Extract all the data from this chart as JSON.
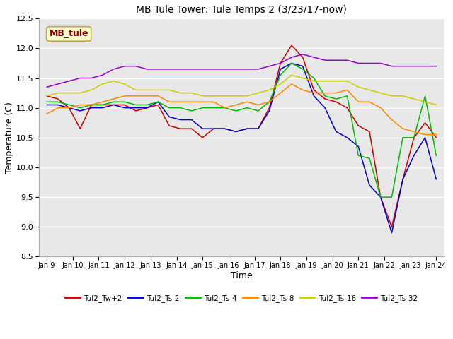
{
  "title": "MB Tule Tower: Tule Temps 2 (3/23/17-now)",
  "xlabel": "Time",
  "ylabel": "Temperature (C)",
  "ylim": [
    8.5,
    12.5
  ],
  "yticks": [
    8.5,
    9.0,
    9.5,
    10.0,
    10.5,
    11.0,
    11.5,
    12.0,
    12.5
  ],
  "bg_color": "#e8e8e8",
  "fig_color": "#ffffff",
  "annotation_box": {
    "text": "MB_tule",
    "facecolor": "#ffffcc",
    "edgecolor": "#bbaa44",
    "textcolor": "#880000"
  },
  "legend_labels": [
    "Tul2_Tw+2",
    "Tul2_Ts-2",
    "Tul2_Ts-4",
    "Tul2_Ts-8",
    "Tul2_Ts-16",
    "Tul2_Ts-32"
  ],
  "line_colors": [
    "#cc0000",
    "#0000cc",
    "#00bb00",
    "#ff8800",
    "#cccc00",
    "#9900cc"
  ],
  "x_tick_labels": [
    "Jan 9",
    "Jan 10",
    "Jan 11",
    "Jan 12",
    "Jan 13",
    "Jan 14",
    "Jan 15",
    "Jan 16",
    "Jan 17",
    "Jan 18",
    "Jan 19",
    "Jan 20",
    "Jan 21",
    "Jan 22",
    "Jan 23",
    "Jan 24"
  ],
  "series": {
    "Tul2_Tw+2": [
      11.2,
      11.15,
      11.0,
      10.65,
      11.05,
      11.05,
      11.05,
      11.05,
      10.95,
      11.0,
      11.05,
      10.7,
      10.65,
      10.65,
      10.5,
      10.65,
      10.65,
      10.6,
      10.65,
      10.65,
      11.0,
      11.75,
      12.05,
      11.85,
      11.3,
      11.15,
      11.1,
      11.0,
      10.7,
      10.6,
      9.5,
      9.0,
      9.8,
      10.5,
      10.75,
      10.5
    ],
    "Tul2_Ts-2": [
      11.05,
      11.05,
      11.0,
      10.95,
      11.0,
      11.0,
      11.05,
      11.0,
      11.0,
      11.0,
      11.1,
      10.85,
      10.8,
      10.8,
      10.65,
      10.65,
      10.65,
      10.6,
      10.65,
      10.65,
      10.95,
      11.65,
      11.75,
      11.7,
      11.2,
      11.0,
      10.6,
      10.5,
      10.35,
      9.7,
      9.5,
      8.9,
      9.8,
      10.2,
      10.5,
      9.8
    ],
    "Tul2_Ts-4": [
      11.1,
      11.1,
      11.05,
      11.0,
      11.05,
      11.05,
      11.1,
      11.1,
      11.05,
      11.05,
      11.1,
      11.0,
      11.0,
      10.95,
      11.0,
      11.0,
      11.0,
      10.95,
      11.0,
      10.95,
      11.1,
      11.55,
      11.75,
      11.65,
      11.5,
      11.2,
      11.15,
      11.2,
      10.2,
      10.15,
      9.5,
      9.5,
      10.5,
      10.5,
      11.2,
      10.2
    ],
    "Tul2_Ts-8": [
      10.9,
      11.0,
      11.0,
      11.05,
      11.05,
      11.1,
      11.15,
      11.2,
      11.2,
      11.2,
      11.2,
      11.1,
      11.1,
      11.1,
      11.1,
      11.1,
      11.0,
      11.05,
      11.1,
      11.05,
      11.1,
      11.25,
      11.4,
      11.3,
      11.25,
      11.25,
      11.25,
      11.3,
      11.1,
      11.1,
      11.0,
      10.8,
      10.65,
      10.6,
      10.55,
      10.55
    ],
    "Tul2_Ts-16": [
      11.2,
      11.25,
      11.25,
      11.25,
      11.3,
      11.4,
      11.45,
      11.4,
      11.3,
      11.3,
      11.3,
      11.3,
      11.25,
      11.25,
      11.2,
      11.2,
      11.2,
      11.2,
      11.2,
      11.25,
      11.3,
      11.4,
      11.55,
      11.5,
      11.45,
      11.45,
      11.45,
      11.45,
      11.35,
      11.3,
      11.25,
      11.2,
      11.2,
      11.15,
      11.1,
      11.05
    ],
    "Tul2_Ts-32": [
      11.35,
      11.4,
      11.45,
      11.5,
      11.5,
      11.55,
      11.65,
      11.7,
      11.7,
      11.65,
      11.65,
      11.65,
      11.65,
      11.65,
      11.65,
      11.65,
      11.65,
      11.65,
      11.65,
      11.65,
      11.7,
      11.75,
      11.85,
      11.9,
      11.85,
      11.8,
      11.8,
      11.8,
      11.75,
      11.75,
      11.75,
      11.7,
      11.7,
      11.7,
      11.7,
      11.7
    ]
  }
}
